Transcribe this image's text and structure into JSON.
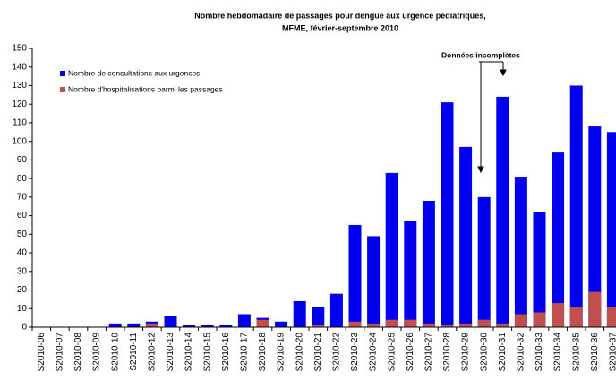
{
  "chart_data": {
    "type": "bar",
    "title": "Nombre hebdomadaire de passages pour dengue aux urgence pédiatriques,",
    "subtitle": "MFME, février-septembre 2010",
    "annotation": "Données incomplètes",
    "categories": [
      "S2010-06",
      "S2010-07",
      "S2010-08",
      "S2010-09",
      "S2010-10",
      "S2010-11",
      "S2010-12",
      "S2010-13",
      "S2010-14",
      "S2010-15",
      "S2010-16",
      "S2010-17",
      "S2010-18",
      "S2010-19",
      "S2010-20",
      "S2010-21",
      "S2010-22",
      "S2010-23",
      "S2010-24",
      "S2010-25",
      "S2010-26",
      "S2010-27",
      "S2010-28",
      "S2010-29",
      "S2010-30",
      "S2010-31",
      "S2010-32",
      "S2010-33",
      "S2010-34",
      "S2010-35",
      "S2010-36",
      "S2010-37"
    ],
    "series": [
      {
        "name": "Nombre de consultations aux urgences",
        "color": "#0000ee",
        "values": [
          0,
          0,
          0,
          0,
          2,
          2,
          3,
          6,
          1,
          1,
          1,
          7,
          5,
          3,
          14,
          11,
          18,
          55,
          49,
          83,
          57,
          68,
          121,
          97,
          70,
          124,
          81,
          62,
          94,
          130,
          108,
          105
        ]
      },
      {
        "name": "Nombre d'hospitalisations parmi les passages",
        "color": "#c0504d",
        "values": [
          0,
          0,
          0,
          0,
          0,
          0,
          2,
          0,
          0,
          0,
          0,
          0,
          4,
          0,
          0,
          1,
          0,
          3,
          2,
          4,
          4,
          2,
          1,
          2,
          4,
          2,
          7,
          8,
          13,
          11,
          19,
          11
        ]
      }
    ],
    "ylim": [
      0,
      150
    ],
    "yticks": [
      0,
      10,
      20,
      30,
      40,
      50,
      60,
      70,
      80,
      90,
      100,
      110,
      120,
      130,
      140,
      150
    ]
  }
}
